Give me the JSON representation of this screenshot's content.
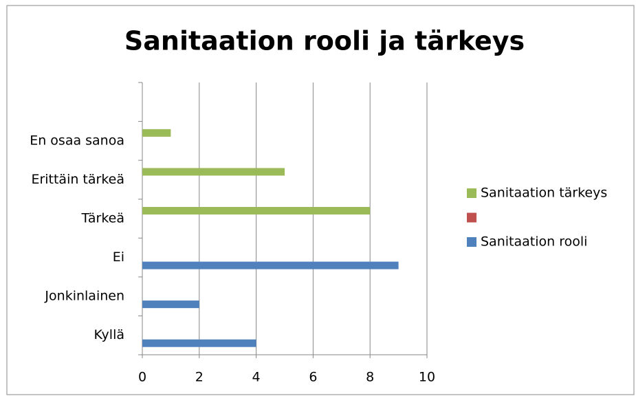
{
  "chart_data": {
    "type": "bar",
    "orientation": "horizontal",
    "title": "Sanitaation rooli ja tärkeys",
    "categories": [
      "Kyllä",
      "Jonkinlainen",
      "Ei",
      "Tärkeä",
      "Erittäin tärkeä",
      "En osaa sanoa",
      null
    ],
    "series": [
      {
        "name": "Sanitaation rooli",
        "color": "#4f81bd",
        "values": [
          4,
          2,
          9,
          null,
          null,
          null,
          null
        ]
      },
      {
        "color": "#c0504d",
        "values": [
          null,
          null,
          null,
          null,
          null,
          null,
          null
        ]
      },
      {
        "name": "Sanitaation tärkeys",
        "color": "#9bbb59",
        "values": [
          null,
          null,
          null,
          8,
          5,
          1,
          null
        ]
      }
    ],
    "xlim": [
      0,
      10
    ],
    "xticks": [
      0,
      2,
      4,
      6,
      8,
      10
    ],
    "grid": true,
    "legend": "right"
  }
}
